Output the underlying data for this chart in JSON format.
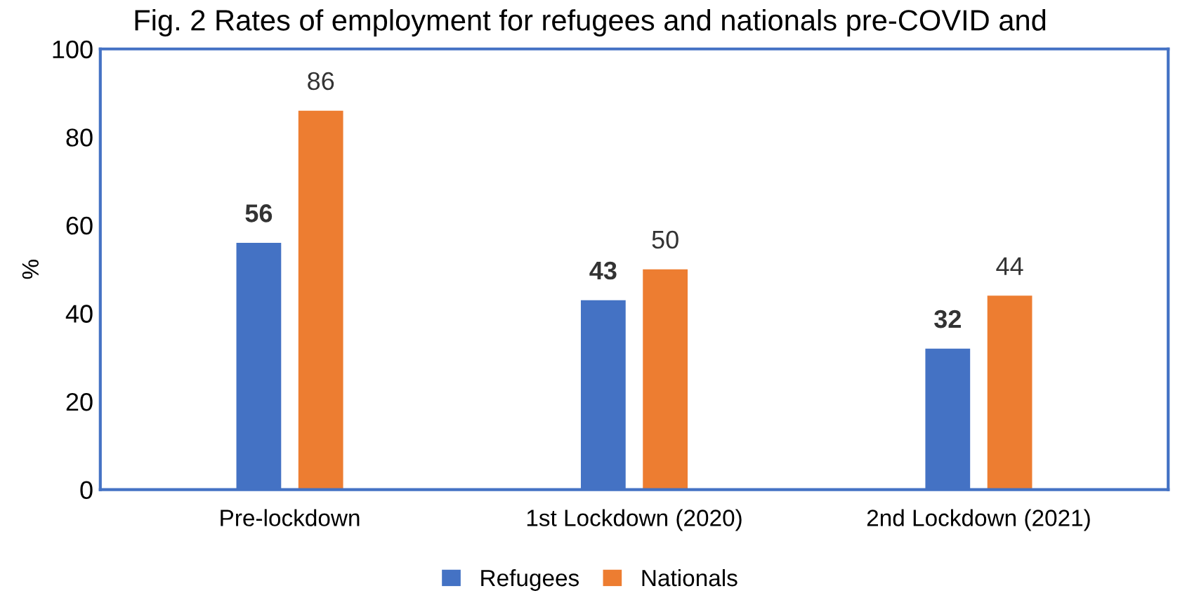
{
  "chart_data": {
    "type": "bar",
    "title": "Fig. 2 Rates of employment for refugees and nationals pre-COVID and",
    "ylabel": "%",
    "categories": [
      "Pre-lockdown",
      "1st Lockdown (2020)",
      "2nd Lockdown (2021)"
    ],
    "series": [
      {
        "name": "Refugees",
        "color": "#4472c4",
        "values": [
          56,
          43,
          32
        ]
      },
      {
        "name": "Nationals",
        "color": "#ed7d31",
        "values": [
          86,
          50,
          44
        ]
      }
    ],
    "ylim": [
      0,
      100
    ],
    "yticks": [
      0,
      20,
      40,
      60,
      80,
      100
    ],
    "grid": false,
    "legend": "bottom",
    "data_labels": true
  }
}
